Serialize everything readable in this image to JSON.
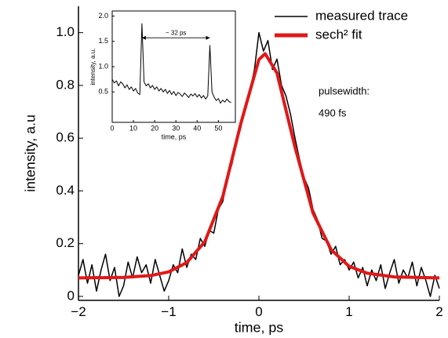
{
  "chart_data": [
    {
      "type": "line",
      "xlabel": "time, ps",
      "ylabel": "intensity, a.u",
      "xlim": [
        -2,
        2
      ],
      "ylim": [
        -0.015,
        1.1
      ],
      "xticks": [
        {
          "value": -2,
          "label": "−2"
        },
        {
          "value": -1,
          "label": "−1"
        },
        0,
        1,
        2
      ],
      "yticks": [
        0,
        0.2,
        0.4,
        0.6,
        0.8,
        {
          "value": 1,
          "label": "1.0"
        }
      ],
      "legend": "upper right",
      "annotations": [
        "pulsewidth:",
        "490 fs"
      ],
      "series": [
        {
          "name": "measured trace",
          "color": "#000000",
          "x": [
            -2,
            -1.95,
            -1.9,
            -1.85,
            -1.8,
            -1.75,
            -1.7,
            -1.65,
            -1.6,
            -1.55,
            -1.5,
            -1.45,
            -1.4,
            -1.35,
            -1.3,
            -1.25,
            -1.2,
            -1.15,
            -1.1,
            -1.05,
            -1,
            -0.95,
            -0.9,
            -0.85,
            -0.8,
            -0.75,
            -0.7,
            -0.65,
            -0.6,
            -0.55,
            -0.5,
            -0.45,
            -0.4,
            -0.35,
            -0.3,
            -0.25,
            -0.2,
            -0.15,
            -0.1,
            -0.05,
            0,
            0.05,
            0.1,
            0.15,
            0.2,
            0.25,
            0.3,
            0.35,
            0.4,
            0.45,
            0.5,
            0.55,
            0.6,
            0.65,
            0.7,
            0.75,
            0.8,
            0.85,
            0.9,
            0.95,
            1,
            1.05,
            1.1,
            1.15,
            1.2,
            1.25,
            1.3,
            1.35,
            1.4,
            1.45,
            1.5,
            1.55,
            1.6,
            1.65,
            1.7,
            1.75,
            1.8,
            1.85,
            1.9,
            1.95,
            2
          ],
          "values": [
            0.08,
            0.14,
            0.05,
            0.12,
            0.02,
            0.1,
            0.16,
            0.06,
            0.11,
            0,
            0.04,
            0.13,
            0.07,
            0.15,
            0.09,
            0.12,
            0.05,
            0.14,
            0.08,
            0.02,
            0.06,
            0.12,
            0.09,
            0.18,
            0.11,
            0.16,
            0.14,
            0.22,
            0.19,
            0.25,
            0.24,
            0.33,
            0.36,
            0.45,
            0.5,
            0.58,
            0.64,
            0.73,
            0.78,
            0.86,
            1,
            0.93,
            0.97,
            0.86,
            0.9,
            0.8,
            0.76,
            0.69,
            0.6,
            0.52,
            0.45,
            0.41,
            0.33,
            0.29,
            0.22,
            0.21,
            0.16,
            0.19,
            0.12,
            0.14,
            0.1,
            0.13,
            0.07,
            0.11,
            0.04,
            0.1,
            0.06,
            0.12,
            0.03,
            0.09,
            0.14,
            0.05,
            0.1,
            0.07,
            0.13,
            0.04,
            0.11,
            0.06,
            0,
            0.08,
            0.03
          ]
        },
        {
          "name": "sech² fit",
          "color": "#e01818",
          "x": [
            -2,
            -1.5,
            -1.2,
            -1,
            -0.8,
            -0.6,
            -0.4,
            -0.2,
            0,
            0.07,
            0.2,
            0.4,
            0.6,
            0.8,
            1,
            1.2,
            1.5,
            2
          ],
          "values": [
            0.07,
            0.072,
            0.079,
            0.093,
            0.128,
            0.207,
            0.379,
            0.656,
            0.898,
            0.92,
            0.847,
            0.566,
            0.316,
            0.177,
            0.114,
            0.088,
            0.074,
            0.07
          ]
        }
      ]
    },
    {
      "type": "line",
      "xlabel": "time, ps",
      "ylabel": "intensity, a.u.",
      "xlim": [
        0,
        58
      ],
      "ylim": [
        -0.1,
        2.1
      ],
      "xticks": [
        0,
        10,
        20,
        30,
        40,
        50
      ],
      "yticks": [
        0.5,
        {
          "value": 1,
          "label": "1.0"
        },
        1.5,
        {
          "value": 2,
          "label": "2.0"
        }
      ],
      "annotation": {
        "text": "~ 32 ps",
        "x": [
          14,
          46
        ],
        "y": 1.57
      },
      "series": [
        {
          "color": "#000000",
          "x": [
            0,
            1,
            2,
            3,
            4,
            5,
            6,
            7,
            8,
            9,
            10,
            11,
            12,
            13,
            14,
            15,
            16,
            17,
            18,
            19,
            20,
            21,
            22,
            23,
            24,
            25,
            26,
            27,
            28,
            29,
            30,
            31,
            32,
            33,
            34,
            35,
            36,
            37,
            38,
            39,
            40,
            41,
            42,
            43,
            44,
            45,
            46,
            47,
            48,
            49,
            50,
            51,
            52,
            53,
            54,
            55,
            56
          ],
          "values": [
            0.75,
            0.68,
            0.72,
            0.62,
            0.7,
            0.66,
            0.58,
            0.64,
            0.55,
            0.6,
            0.52,
            0.57,
            0.48,
            0.45,
            1.85,
            0.7,
            0.62,
            0.66,
            0.58,
            0.63,
            0.55,
            0.6,
            0.52,
            0.57,
            0.5,
            0.55,
            0.47,
            0.53,
            0.45,
            0.51,
            0.43,
            0.49,
            0.46,
            0.41,
            0.48,
            0.44,
            0.39,
            0.46,
            0.42,
            0.47,
            0.4,
            0.45,
            0.38,
            0.43,
            0.36,
            0.42,
            1.42,
            0.5,
            0.4,
            0.33,
            0.37,
            0.28,
            0.34,
            0.3,
            0.36,
            0.31,
            0.29
          ]
        }
      ]
    }
  ]
}
